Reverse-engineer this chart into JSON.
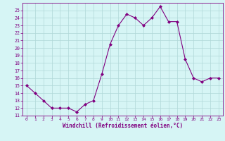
{
  "x": [
    0,
    1,
    2,
    3,
    4,
    5,
    6,
    7,
    8,
    9,
    10,
    11,
    12,
    13,
    14,
    15,
    16,
    17,
    18,
    19,
    20,
    21,
    22,
    23
  ],
  "y": [
    15,
    14,
    13,
    12,
    12,
    12,
    11.5,
    12.5,
    13,
    16.5,
    20.5,
    23,
    24.5,
    24,
    23,
    24,
    25.5,
    23.5,
    23.5,
    18.5,
    16,
    15.5,
    16,
    16
  ],
  "line_color": "#800080",
  "marker": "D",
  "marker_size": 2.0,
  "bg_color": "#d6f5f5",
  "grid_color": "#b0d8d8",
  "xlabel": "Windchill (Refroidissement éolien,°C)",
  "xlabel_color": "#800080",
  "tick_color": "#800080",
  "spine_color": "#800080",
  "ylim": [
    11,
    26
  ],
  "xlim": [
    -0.5,
    23.5
  ],
  "yticks": [
    11,
    12,
    13,
    14,
    15,
    16,
    17,
    18,
    19,
    20,
    21,
    22,
    23,
    24,
    25
  ],
  "xticks": [
    0,
    1,
    2,
    3,
    4,
    5,
    6,
    7,
    8,
    9,
    10,
    11,
    12,
    13,
    14,
    15,
    16,
    17,
    18,
    19,
    20,
    21,
    22,
    23
  ],
  "xlabel_fontsize": 5.5,
  "xtick_fontsize": 4.5,
  "ytick_fontsize": 4.8
}
